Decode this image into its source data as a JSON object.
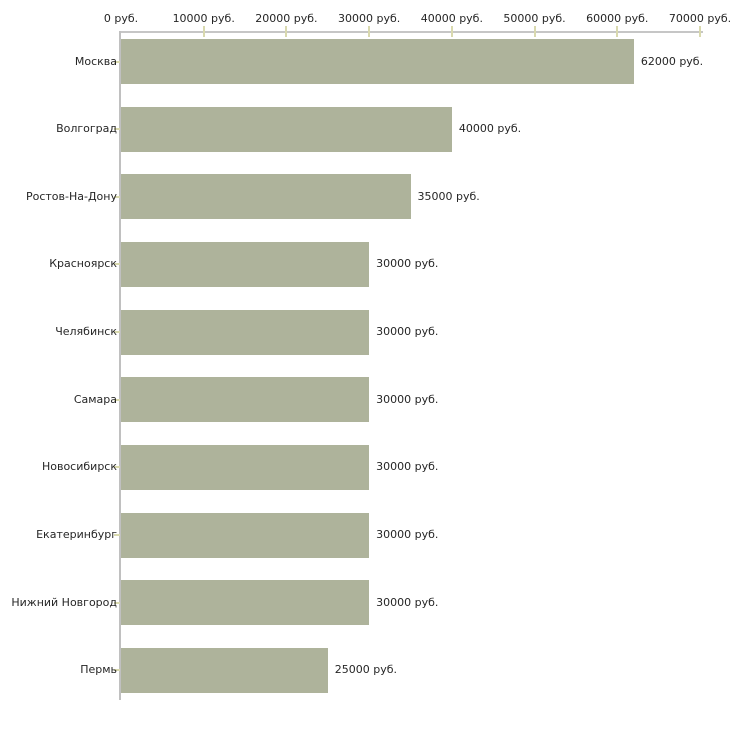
{
  "chart_data": {
    "type": "bar",
    "orientation": "horizontal",
    "title": "",
    "xlabel": "",
    "ylabel": "",
    "categories": [
      "Москва",
      "Волгоград",
      "Ростов-На-Дону",
      "Красноярск",
      "Челябинск",
      "Самара",
      "Новосибирск",
      "Екатеринбург",
      "Нижний Новгород",
      "Пермь"
    ],
    "values": [
      62000,
      40000,
      35000,
      30000,
      30000,
      30000,
      30000,
      30000,
      30000,
      25000
    ],
    "value_labels": [
      "62000 руб.",
      "40000 руб.",
      "35000 руб.",
      "30000 руб.",
      "30000 руб.",
      "30000 руб.",
      "30000 руб.",
      "30000 руб.",
      "30000 руб.",
      "25000 руб."
    ],
    "x_axis": {
      "min": 0,
      "max": 70000,
      "tick_values": [
        0,
        10000,
        20000,
        30000,
        40000,
        50000,
        60000,
        70000
      ],
      "tick_labels": [
        "0 руб.",
        "10000 руб.",
        "20000 руб.",
        "30000 руб.",
        "40000 руб.",
        "50000 руб.",
        "60000 руб.",
        "70000 руб."
      ],
      "unit": "руб."
    },
    "legend": "none",
    "grid": "off",
    "colors": {
      "bar": "#aeb39b",
      "axis_line": "#c6c6c6",
      "tick_mark": "#d9d9ae",
      "text": "#262626",
      "background": "#ffffff"
    }
  }
}
